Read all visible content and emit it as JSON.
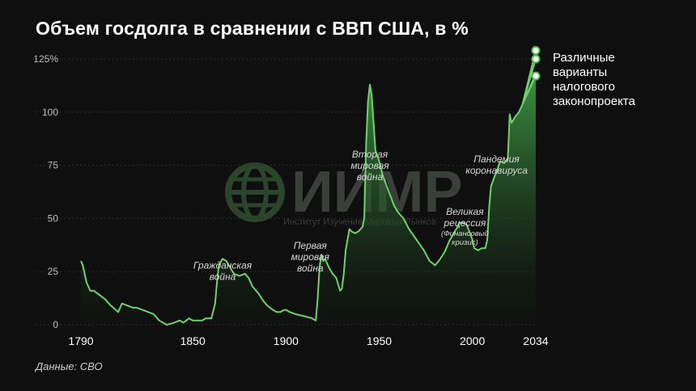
{
  "title": "Объем госдолга в сравнении с ВВП США, в %",
  "source": "Данные: СВО",
  "watermark": {
    "logo_text": "ИИМР",
    "subtitle": "Институт Изучения Мировых Рынков"
  },
  "colors": {
    "background": "#0e0f0e",
    "line": "#6fd36a",
    "fill_top": "#3f9a44",
    "marker_fill": "#ffffff",
    "marker_stroke": "#4cbf4f"
  },
  "chart_data": {
    "type": "area",
    "title": "Объем госдолга в сравнении с ВВП США, в %",
    "xlabel": "",
    "ylabel": "",
    "xlim": [
      1790,
      2034
    ],
    "ylim": [
      0,
      125
    ],
    "grid": true,
    "y_ticks": [
      "0",
      "25",
      "50",
      "75",
      "100",
      "125%"
    ],
    "y_tick_values": [
      0,
      25,
      50,
      75,
      100,
      125
    ],
    "x_ticks": [
      "1790",
      "1850",
      "1900",
      "1950",
      "2000",
      "2034"
    ],
    "x_tick_values": [
      1790,
      1850,
      1900,
      1950,
      2000,
      2034
    ],
    "series": [
      {
        "x": [
          1790,
          1791,
          1793,
          1795,
          1797,
          1800,
          1803,
          1806,
          1810,
          1812,
          1815,
          1818,
          1820,
          1823,
          1826,
          1829,
          1832,
          1834,
          1836,
          1840,
          1843,
          1845,
          1848,
          1850,
          1852,
          1855,
          1857,
          1860,
          1862,
          1863,
          1864,
          1866,
          1868,
          1870,
          1872,
          1875,
          1878,
          1880,
          1882,
          1885,
          1888,
          1890,
          1893,
          1895,
          1897,
          1899,
          1900,
          1902,
          1905,
          1910,
          1914,
          1916,
          1917,
          1918,
          1919,
          1920,
          1921,
          1923,
          1925,
          1927,
          1929,
          1930,
          1931,
          1932,
          1933,
          1934,
          1935,
          1937,
          1939,
          1940,
          1941,
          1942,
          1943,
          1944,
          1945,
          1946,
          1947,
          1948,
          1950,
          1952,
          1955,
          1958,
          1960,
          1963,
          1966,
          1970,
          1974,
          1977,
          1980,
          1982,
          1985,
          1988,
          1990,
          1992,
          1993,
          1995,
          1997,
          2000,
          2001,
          2003,
          2005,
          2007,
          2008,
          2009,
          2010,
          2012,
          2013,
          2015,
          2017,
          2019,
          2020,
          2021,
          2023,
          2025,
          2027,
          2030,
          2034
        ],
        "y": [
          30,
          28,
          20,
          16,
          16,
          14,
          12,
          9,
          6,
          10,
          9,
          8,
          8,
          7,
          6,
          5,
          2,
          1,
          0,
          1,
          2,
          1,
          3,
          2,
          2,
          2,
          3,
          3,
          10,
          20,
          28,
          31,
          30,
          27,
          24,
          23,
          24,
          22,
          18,
          15,
          11,
          9,
          7,
          6,
          6,
          7,
          7,
          6,
          5,
          4,
          3,
          2,
          12,
          27,
          33,
          30,
          31,
          27,
          24,
          22,
          16,
          17,
          24,
          35,
          40,
          45,
          44,
          43,
          44,
          45,
          46,
          50,
          85,
          105,
          113,
          108,
          95,
          82,
          77,
          70,
          63,
          56,
          53,
          50,
          45,
          40,
          35,
          30,
          28,
          30,
          34,
          40,
          43,
          46,
          48,
          48,
          47,
          40,
          36,
          35,
          36,
          36,
          40,
          55,
          65,
          70,
          72,
          77,
          76,
          78,
          99,
          95,
          98,
          100,
          104,
          110,
          118
        ]
      }
    ],
    "projections": [
      {
        "x": 2034,
        "y": 129
      },
      {
        "x": 2034,
        "y": 125
      },
      {
        "x": 2034,
        "y": 117
      }
    ],
    "projection_label": [
      "Различные",
      "варианты",
      "налогового",
      "законопроекта"
    ],
    "annotations": [
      {
        "lines": [
          "Гражданская",
          "война"
        ],
        "x": 1866,
        "y": 18
      },
      {
        "lines": [
          "Первая",
          "мировая",
          "война"
        ],
        "x": 1913,
        "y": 22
      },
      {
        "lines": [
          "Вторая",
          "мировая",
          "война"
        ],
        "x": 1945,
        "y": 65
      },
      {
        "lines": [
          "Великая",
          "рецессия"
        ],
        "sub": [
          "(Финансовый",
          "кризис)"
        ],
        "x": 1996,
        "y": 35
      },
      {
        "lines": [
          "Пандемия",
          "коронавируса"
        ],
        "x": 2013,
        "y": 68
      }
    ]
  }
}
